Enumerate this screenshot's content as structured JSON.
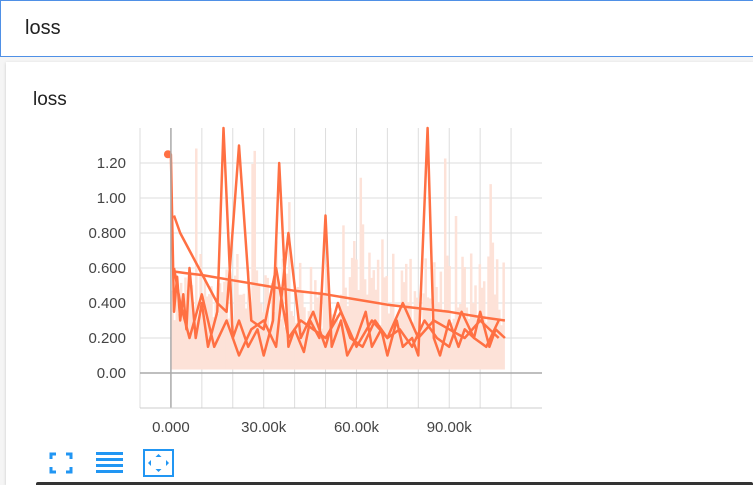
{
  "search": {
    "value": "loss"
  },
  "card": {
    "title": "loss"
  },
  "chart_data": {
    "type": "line",
    "title": "loss",
    "xlabel": "",
    "ylabel": "",
    "xlim": [
      -10000,
      120000
    ],
    "ylim": [
      -0.2,
      1.4
    ],
    "x_ticks": [
      0,
      30000,
      60000,
      90000
    ],
    "x_tick_labels": [
      "0.000",
      "30.00k",
      "60.00k",
      "90.00k"
    ],
    "y_ticks": [
      0,
      0.2,
      0.4,
      0.6,
      0.8,
      1.0,
      1.2
    ],
    "y_tick_labels": [
      "0.00",
      "0.200",
      "0.400",
      "0.600",
      "0.800",
      "1.00",
      "1.20"
    ],
    "grid": true,
    "series": [
      {
        "color": "#ff7043",
        "x": [
          0,
          1000,
          2000,
          3000,
          4000,
          5000,
          6000,
          8000,
          10000,
          12000,
          15000,
          17000,
          20000,
          22000,
          25000,
          28000,
          30000,
          33000,
          35000,
          38000,
          40000,
          43000,
          45000,
          48000,
          50000,
          52000,
          55000,
          57000,
          60000,
          63000,
          65000,
          68000,
          70000,
          73000,
          75000,
          78000,
          80000,
          83000,
          85000,
          87000,
          90000,
          93000,
          95000,
          98000,
          100000,
          103000,
          105000,
          108000
        ],
        "y": [
          1.25,
          0.35,
          0.55,
          0.3,
          0.45,
          0.25,
          0.6,
          0.2,
          0.4,
          0.15,
          0.35,
          1.4,
          0.2,
          0.3,
          0.15,
          0.25,
          0.1,
          0.3,
          1.2,
          0.15,
          0.25,
          0.12,
          0.3,
          0.2,
          0.9,
          0.15,
          0.3,
          0.1,
          0.2,
          0.35,
          0.15,
          0.25,
          0.1,
          0.3,
          0.15,
          0.2,
          0.1,
          1.4,
          0.2,
          0.1,
          0.3,
          0.15,
          0.25,
          0.2,
          0.35,
          0.15,
          0.25,
          0.2
        ]
      },
      {
        "color": "#ff7043",
        "x": [
          1000,
          3000,
          6000,
          10000,
          14000,
          18000,
          22000,
          26000,
          30000,
          34000,
          38000,
          42000,
          46000,
          50000,
          54000,
          58000,
          62000,
          66000,
          70000,
          74000,
          78000,
          82000,
          86000,
          90000,
          94000,
          98000,
          102000,
          106000
        ],
        "y": [
          0.6,
          0.4,
          0.2,
          0.45,
          0.15,
          0.3,
          0.1,
          0.25,
          0.3,
          0.15,
          0.8,
          0.2,
          0.35,
          0.15,
          0.4,
          0.2,
          0.15,
          0.3,
          0.2,
          0.25,
          0.15,
          0.3,
          0.2,
          0.15,
          0.35,
          0.2,
          0.15,
          0.3
        ]
      },
      {
        "color": "#ff7043",
        "x": [
          1000,
          5000,
          10000,
          20000,
          30000,
          40000,
          50000,
          60000,
          70000,
          80000,
          90000,
          100000,
          108000
        ],
        "y": [
          0.58,
          0.57,
          0.56,
          0.53,
          0.5,
          0.47,
          0.45,
          0.42,
          0.39,
          0.37,
          0.35,
          0.32,
          0.3
        ]
      },
      {
        "color": "#ff7043",
        "x": [
          1000,
          3000,
          6000,
          9000,
          12000,
          15000,
          18000,
          22000,
          26000,
          30000,
          34000,
          38000,
          42000,
          46000,
          50000,
          55000,
          60000,
          65000,
          70000,
          75000,
          80000,
          85000,
          90000,
          95000,
          100000,
          106000
        ],
        "y": [
          0.9,
          0.8,
          0.7,
          0.6,
          0.5,
          0.4,
          0.35,
          1.3,
          0.3,
          0.25,
          0.6,
          0.2,
          0.3,
          0.25,
          0.2,
          0.35,
          0.15,
          0.3,
          0.2,
          0.4,
          0.2,
          0.3,
          0.25,
          0.2,
          0.3,
          0.2
        ]
      }
    ],
    "point": {
      "x": 0,
      "y": 1.25,
      "color": "#ff7043"
    },
    "band_color": "#fde2d8"
  },
  "toolbar": {
    "fit_icon": "expand-icon",
    "data_icon": "list-icon",
    "fit_domain_icon": "fit-domain-icon",
    "accent_color": "#2196f3"
  }
}
